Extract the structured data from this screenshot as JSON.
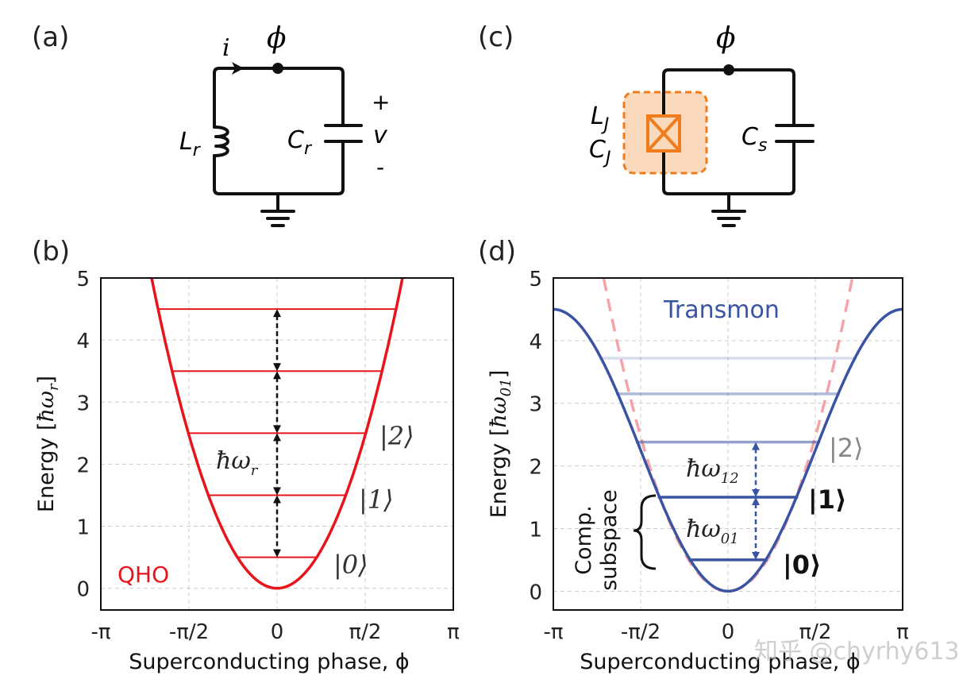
{
  "panels": {
    "a": "(a)",
    "b": "(b)",
    "c": "(c)",
    "d": "(d)"
  },
  "circuit_a": {
    "current": "i",
    "node": "ϕ",
    "inductor": "L",
    "inductor_sub": "r",
    "capacitor": "C",
    "capacitor_sub": "r",
    "plus": "+",
    "voltage": "v",
    "minus": "-"
  },
  "circuit_c": {
    "node": "ϕ",
    "junction_L": "L",
    "junction_L_sub": "J",
    "junction_C": "C",
    "junction_C_sub": "J",
    "shunt": "C",
    "shunt_sub": "s"
  },
  "colors": {
    "qho": "#e8141b",
    "transmon": "#3a54a4",
    "qho_dashed": "#f4a3a8",
    "junction": "#f07c1c",
    "junction_fill": "#fbd9bd"
  },
  "watermark": "知乎 @chyrhy613",
  "chart_data": [
    {
      "type": "line",
      "panel": "b",
      "xlabel": "Superconducting phase, ϕ",
      "ylabel": "Energy [ ħω_r ]",
      "ylabel_main": "Energy [",
      "ylabel_math": "ħω",
      "ylabel_sub": "r",
      "ylabel_end": "]",
      "xlim": [
        -3.1416,
        3.1416
      ],
      "ylim": [
        -0.35,
        5
      ],
      "xticks": [
        "-π",
        "-π/2",
        "0",
        "π/2",
        "π"
      ],
      "yticks": [
        "0",
        "1",
        "2",
        "3",
        "4",
        "5"
      ],
      "grid": true,
      "potential": {
        "name": "QHO",
        "formula": "E = ϕ²",
        "color": "#e8141b"
      },
      "levels": [
        0.5,
        1.5,
        2.5,
        3.5,
        4.5
      ],
      "level_labels": [
        "|0⟩",
        "|1⟩",
        "|2⟩"
      ],
      "spacing_label": "ħω",
      "spacing_label_sub": "r"
    },
    {
      "type": "line",
      "panel": "d",
      "xlabel": "Superconducting phase, ϕ",
      "ylabel_main": "Energy [",
      "ylabel_math": "ħω",
      "ylabel_sub": "01",
      "ylabel_end": "]",
      "xlim": [
        -3.1416,
        3.1416
      ],
      "ylim": [
        -0.3,
        5
      ],
      "xticks": [
        "-π",
        "-π/2",
        "0",
        "π/2",
        "π"
      ],
      "yticks": [
        "0",
        "1",
        "2",
        "3",
        "4",
        "5"
      ],
      "grid": true,
      "potential": {
        "name": "Transmon",
        "formula": "E = 2.25(1 - cos ϕ)",
        "color": "#3a54a4"
      },
      "reference": {
        "formula": "E = ϕ²",
        "style": "dashed",
        "color": "#f4a3a8"
      },
      "levels": [
        0.5,
        1.5,
        2.38,
        3.15,
        3.72
      ],
      "level_opacity": [
        1,
        1,
        0.55,
        0.4,
        0.2
      ],
      "level_labels": [
        "|0⟩",
        "|1⟩",
        "|2⟩"
      ],
      "spacing_labels": [
        {
          "text": "ħω",
          "sub": "01"
        },
        {
          "text": "ħω",
          "sub": "12"
        }
      ],
      "brace_label": [
        "Comp.",
        "subspace"
      ]
    }
  ]
}
